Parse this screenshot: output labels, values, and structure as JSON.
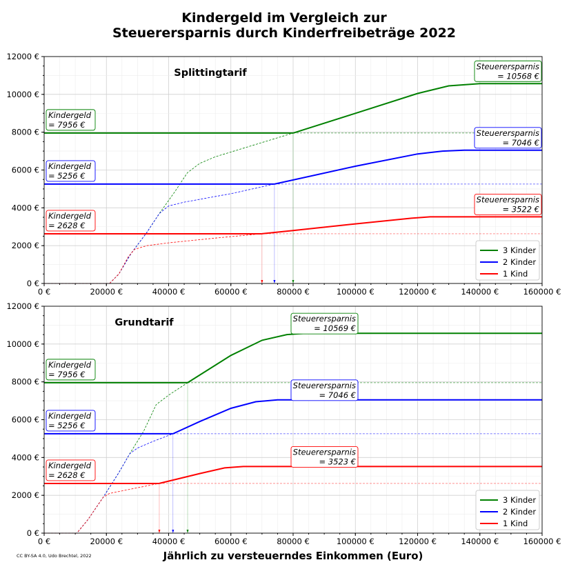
{
  "chart_data": {
    "title_line1": "Kindergeld im Vergleich zur",
    "title_line2": "Steuerersparnis durch Kinderfreibeträge 2022",
    "xlabel": "Jährlich zu versteuerndes Einkommen (Euro)",
    "credit": "CC BY-SA 4.0, Udo Brechtel, 2022",
    "xlim": [
      0,
      160000
    ],
    "ylim": [
      0,
      12000
    ],
    "xticks": [
      "0 €",
      "20000 €",
      "40000 €",
      "60000 €",
      "80000 €",
      "100000 €",
      "120000 €",
      "140000 €",
      "160000 €"
    ],
    "yticks": [
      "0 €",
      "2000 €",
      "4000 €",
      "6000 €",
      "8000 €",
      "10000 €",
      "12000 €"
    ],
    "colors": {
      "3 Kinder": "#008000",
      "2 Kinder": "#0000ff",
      "1 Kind": "#ff0000"
    },
    "annotation_label_kindergeld": "Kindergeld",
    "annotation_label_steuer": "Steuerersparnis",
    "panels": [
      {
        "type": "line",
        "title": "Splittingtarif",
        "legend": "bottom-right",
        "series": [
          {
            "name": "3 Kinder",
            "kindergeld": 7956,
            "kindergeld_text": "=   7956 €",
            "max_saving_text": "= 10568 €",
            "crossover": 80000,
            "dashed": [
              [
                0,
                0
              ],
              [
                21000,
                0
              ],
              [
                24000,
                500
              ],
              [
                28000,
                1600
              ],
              [
                33000,
                2700
              ],
              [
                37000,
                3700
              ],
              [
                42000,
                4850
              ],
              [
                46000,
                5850
              ],
              [
                50000,
                6350
              ],
              [
                55000,
                6700
              ],
              [
                80000,
                7956
              ]
            ],
            "solid": [
              [
                80000,
                7956
              ],
              [
                100000,
                9000
              ],
              [
                120000,
                10050
              ],
              [
                130000,
                10450
              ],
              [
                140000,
                10568
              ],
              [
                160000,
                10568
              ]
            ]
          },
          {
            "name": "2 Kinder",
            "kindergeld": 5256,
            "kindergeld_text": "=   5256 €",
            "max_saving_text": "=  7046 €",
            "crossover": 74000,
            "dashed": [
              [
                0,
                0
              ],
              [
                21000,
                0
              ],
              [
                24000,
                500
              ],
              [
                28000,
                1600
              ],
              [
                33000,
                2700
              ],
              [
                37000,
                3700
              ],
              [
                40000,
                4100
              ],
              [
                45000,
                4300
              ],
              [
                60000,
                4750
              ],
              [
                74000,
                5256
              ]
            ],
            "solid": [
              [
                74000,
                5256
              ],
              [
                100000,
                6200
              ],
              [
                120000,
                6850
              ],
              [
                128000,
                7000
              ],
              [
                135000,
                7046
              ],
              [
                160000,
                7046
              ]
            ]
          },
          {
            "name": "1 Kind",
            "kindergeld": 2628,
            "kindergeld_text": "=   2628 €",
            "max_saving_text": "=  3522 €",
            "crossover": 70000,
            "dashed": [
              [
                0,
                0
              ],
              [
                21000,
                0
              ],
              [
                24000,
                500
              ],
              [
                27000,
                1400
              ],
              [
                29000,
                1800
              ],
              [
                33000,
                2000
              ],
              [
                40000,
                2150
              ],
              [
                55000,
                2400
              ],
              [
                70000,
                2628
              ]
            ],
            "solid": [
              [
                70000,
                2628
              ],
              [
                80000,
                2800
              ],
              [
                100000,
                3150
              ],
              [
                118000,
                3450
              ],
              [
                124000,
                3522
              ],
              [
                160000,
                3522
              ]
            ]
          }
        ]
      },
      {
        "type": "line",
        "title": "Grundtarif",
        "legend": "bottom-right",
        "series": [
          {
            "name": "3 Kinder",
            "kindergeld": 7956,
            "kindergeld_text": "=   7956 €",
            "max_saving_text": "= 10569 €",
            "crossover": 46100,
            "dashed": [
              [
                0,
                0
              ],
              [
                10500,
                0
              ],
              [
                14000,
                700
              ],
              [
                19000,
                1900
              ],
              [
                24000,
                3200
              ],
              [
                27500,
                4200
              ],
              [
                32000,
                5400
              ],
              [
                36000,
                6800
              ],
              [
                40000,
                7300
              ],
              [
                46100,
                7956
              ]
            ],
            "solid": [
              [
                46100,
                7956
              ],
              [
                60000,
                9400
              ],
              [
                70000,
                10200
              ],
              [
                78000,
                10500
              ],
              [
                84000,
                10569
              ],
              [
                160000,
                10569
              ]
            ]
          },
          {
            "name": "2 Kinder",
            "kindergeld": 5256,
            "kindergeld_text": "=   5256 €",
            "max_saving_text": "=  7046 €",
            "crossover": 41400,
            "dashed": [
              [
                0,
                0
              ],
              [
                10500,
                0
              ],
              [
                14000,
                700
              ],
              [
                19000,
                1900
              ],
              [
                24000,
                3200
              ],
              [
                27500,
                4200
              ],
              [
                30000,
                4500
              ],
              [
                35000,
                4850
              ],
              [
                41400,
                5256
              ]
            ],
            "solid": [
              [
                41400,
                5256
              ],
              [
                50000,
                5900
              ],
              [
                60000,
                6600
              ],
              [
                68000,
                6950
              ],
              [
                75000,
                7046
              ],
              [
                160000,
                7046
              ]
            ]
          },
          {
            "name": "1 Kind",
            "kindergeld": 2628,
            "kindergeld_text": "=   2628 €",
            "max_saving_text": "=  3523 €",
            "crossover": 37000,
            "dashed": [
              [
                0,
                0
              ],
              [
                10500,
                0
              ],
              [
                14000,
                700
              ],
              [
                19000,
                1900
              ],
              [
                21000,
                2100
              ],
              [
                30000,
                2400
              ],
              [
                37000,
                2628
              ]
            ],
            "solid": [
              [
                37000,
                2628
              ],
              [
                50000,
                3150
              ],
              [
                58000,
                3450
              ],
              [
                64000,
                3523
              ],
              [
                160000,
                3523
              ]
            ]
          }
        ]
      }
    ]
  }
}
